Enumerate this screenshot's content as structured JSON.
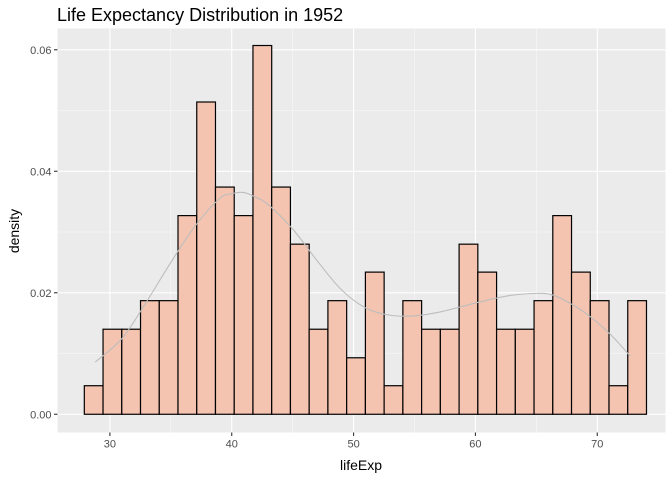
{
  "chart_data": {
    "type": "histogram",
    "title": "Life Expectancy Distribution in 1952",
    "xlabel": "lifeExp",
    "ylabel": "density",
    "xlim": [
      25.7,
      75.6
    ],
    "ylim": [
      -0.003,
      0.0635
    ],
    "x_ticks": [
      30,
      40,
      50,
      60,
      70
    ],
    "y_ticks": [
      0.0,
      0.02,
      0.04,
      0.06
    ],
    "y_tick_labels": [
      "0.00",
      "0.02",
      "0.04",
      "0.06"
    ],
    "grid": true,
    "bin_start": 27.9,
    "bin_width": 1.538,
    "densities": [
      0.0047,
      0.014,
      0.014,
      0.0187,
      0.0187,
      0.0327,
      0.0514,
      0.0374,
      0.0327,
      0.0607,
      0.0374,
      0.028,
      0.014,
      0.0187,
      0.0093,
      0.0234,
      0.0047,
      0.0187,
      0.014,
      0.014,
      0.028,
      0.0234,
      0.014,
      0.014,
      0.0187,
      0.0327,
      0.0234,
      0.0187,
      0.0047,
      0.0187
    ],
    "bar_fill": "#f4c4b0",
    "bar_stroke": "#000000",
    "density_curve": {
      "color": "#bdbdbd",
      "x": [
        28.8,
        31,
        33,
        35,
        37,
        39,
        40,
        41,
        42,
        43,
        45,
        47,
        49,
        51,
        53,
        55,
        57,
        59,
        61,
        63,
        65,
        66,
        67,
        69,
        71,
        72.7
      ],
      "y": [
        0.0086,
        0.0125,
        0.0185,
        0.025,
        0.031,
        0.0355,
        0.0363,
        0.0365,
        0.0357,
        0.0345,
        0.0305,
        0.0253,
        0.0205,
        0.0175,
        0.0163,
        0.0162,
        0.0168,
        0.0178,
        0.0188,
        0.0196,
        0.0199,
        0.0198,
        0.0191,
        0.0167,
        0.0133,
        0.0096
      ]
    },
    "panel_background": "#ebebeb"
  }
}
